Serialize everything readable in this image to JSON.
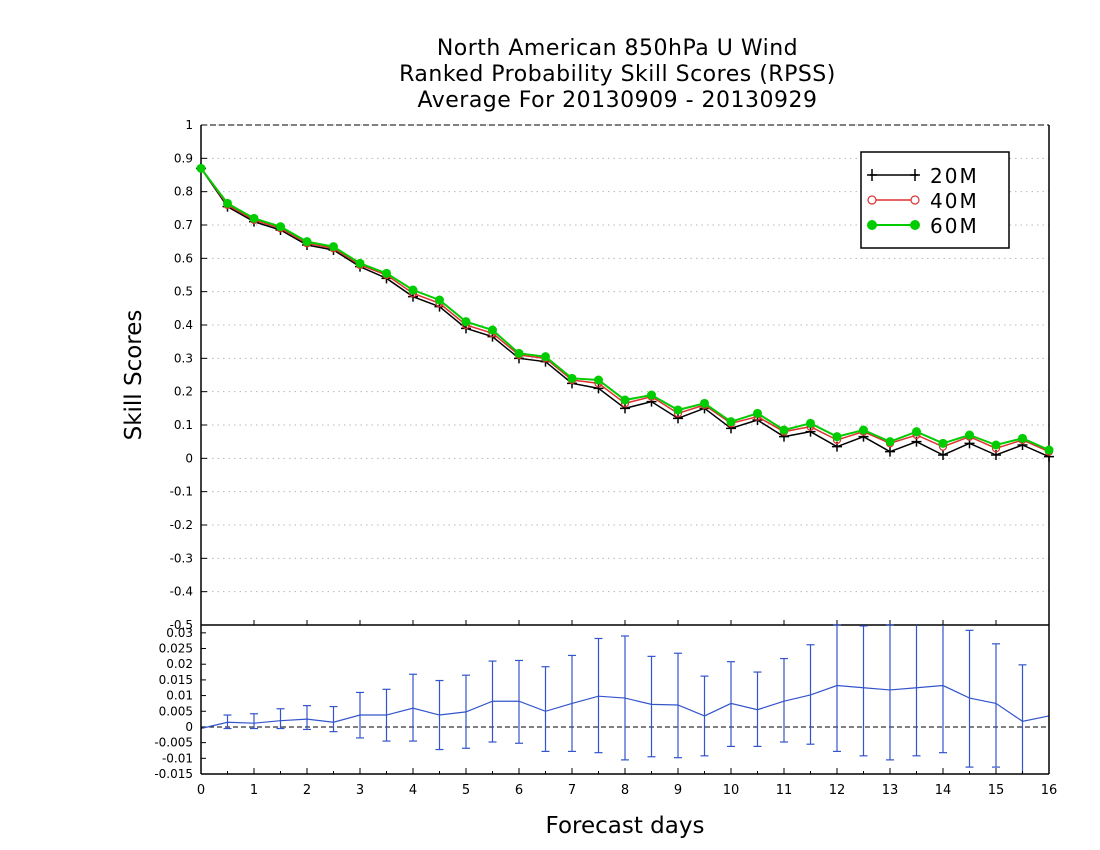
{
  "title_lines": [
    "North American 850hPa U Wind",
    "Ranked Probability Skill Scores (RPSS)",
    "Average For 20130909 - 20130929"
  ],
  "chart_data": [
    {
      "type": "line",
      "ylabel": "Skill Scores",
      "xlim": [
        0,
        16
      ],
      "ylim": [
        -0.5,
        1
      ],
      "yticks": [
        "1",
        "0.9",
        "0.8",
        "0.7",
        "0.6",
        "0.5",
        "0.4",
        "0.3",
        "0.2",
        "0.1",
        "0",
        "-0.1",
        "-0.2",
        "-0.3",
        "-0.4"
      ],
      "grid": true,
      "legend_position": "top-right",
      "x": [
        0,
        0.5,
        1,
        1.5,
        2,
        2.5,
        3,
        3.5,
        4,
        4.5,
        5,
        5.5,
        6,
        6.5,
        7,
        7.5,
        8,
        8.5,
        9,
        9.5,
        10,
        10.5,
        11,
        11.5,
        12,
        12.5,
        13,
        13.5,
        14,
        14.5,
        15,
        15.5,
        16
      ],
      "series": [
        {
          "name": "20M",
          "color": "#000000",
          "marker": "plus",
          "values": [
            0.87,
            0.755,
            0.71,
            0.685,
            0.64,
            0.625,
            0.575,
            0.54,
            0.485,
            0.455,
            0.39,
            0.365,
            0.3,
            0.29,
            0.225,
            0.21,
            0.15,
            0.17,
            0.12,
            0.15,
            0.09,
            0.115,
            0.065,
            0.08,
            0.035,
            0.065,
            0.02,
            0.05,
            0.01,
            0.045,
            0.01,
            0.04,
            0.005
          ]
        },
        {
          "name": "40M",
          "color": "#e03030",
          "marker": "open-circle",
          "values": [
            0.87,
            0.76,
            0.715,
            0.69,
            0.645,
            0.63,
            0.58,
            0.55,
            0.495,
            0.465,
            0.4,
            0.375,
            0.31,
            0.3,
            0.235,
            0.225,
            0.165,
            0.185,
            0.135,
            0.16,
            0.105,
            0.125,
            0.08,
            0.095,
            0.055,
            0.08,
            0.045,
            0.07,
            0.035,
            0.065,
            0.03,
            0.055,
            0.02
          ]
        },
        {
          "name": "60M",
          "color": "#00cc00",
          "marker": "filled-circle",
          "values": [
            0.87,
            0.765,
            0.72,
            0.695,
            0.65,
            0.635,
            0.585,
            0.555,
            0.505,
            0.475,
            0.41,
            0.385,
            0.315,
            0.305,
            0.24,
            0.235,
            0.175,
            0.19,
            0.145,
            0.165,
            0.11,
            0.135,
            0.085,
            0.105,
            0.065,
            0.085,
            0.05,
            0.08,
            0.045,
            0.07,
            0.04,
            0.06,
            0.025
          ]
        }
      ]
    },
    {
      "type": "line",
      "xlabel": "Forecast days",
      "xlim": [
        0,
        16
      ],
      "ylim": [
        -0.015,
        0.0325
      ],
      "xticks": [
        "0",
        "1",
        "2",
        "3",
        "4",
        "5",
        "6",
        "7",
        "8",
        "9",
        "10",
        "11",
        "12",
        "13",
        "14",
        "15",
        "16"
      ],
      "yticks": [
        "0.03",
        "0.025",
        "0.02",
        "0.015",
        "0.01",
        "0.005",
        "0",
        "-0.005",
        "-0.01",
        "-0.015"
      ],
      "top_label": "-0.5",
      "zero_line": "dashed",
      "x": [
        0,
        0.5,
        1,
        1.5,
        2,
        2.5,
        3,
        3.5,
        4,
        4.5,
        5,
        5.5,
        6,
        6.5,
        7,
        7.5,
        8,
        8.5,
        9,
        9.5,
        10,
        10.5,
        11,
        11.5,
        12,
        12.5,
        13,
        13.5,
        14,
        14.5,
        15,
        15.5,
        16
      ],
      "series": [
        {
          "color": "#3355cc",
          "values": [
            -0.0005,
            0.0015,
            0.0012,
            0.002,
            0.0025,
            0.0015,
            0.0038,
            0.0038,
            0.006,
            0.0038,
            0.0048,
            0.0082,
            0.0082,
            0.005,
            0.0075,
            0.0098,
            0.0092,
            0.0072,
            0.007,
            0.0035,
            0.0075,
            0.0055,
            0.0082,
            0.0102,
            0.0132,
            0.0125,
            0.0118,
            0.0125,
            0.0132,
            0.0092,
            0.0075,
            0.0018,
            0.0035
          ],
          "error_low": [
            null,
            -0.0005,
            -0.0005,
            -0.0005,
            -0.0008,
            -0.0015,
            -0.0035,
            -0.0045,
            -0.0045,
            -0.0072,
            -0.0068,
            -0.0048,
            -0.0052,
            -0.0078,
            -0.0078,
            -0.0082,
            -0.0105,
            -0.0095,
            -0.0098,
            -0.0092,
            -0.0062,
            -0.0062,
            -0.0048,
            -0.0055,
            -0.0078,
            -0.0092,
            -0.0105,
            -0.0092,
            -0.0082,
            -0.0128,
            -0.0128,
            -0.0152,
            null
          ],
          "error_high": [
            null,
            0.0038,
            0.0042,
            0.0058,
            0.0068,
            0.0065,
            0.011,
            0.012,
            0.0168,
            0.0148,
            0.0165,
            0.021,
            0.0212,
            0.0192,
            0.0228,
            0.0282,
            0.029,
            0.0225,
            0.0235,
            0.0162,
            0.0208,
            0.0175,
            0.0218,
            0.0262,
            0.0325,
            0.0322,
            0.0325,
            0.0345,
            0.0345,
            0.0308,
            0.0265,
            0.0198,
            null
          ]
        }
      ]
    }
  ]
}
